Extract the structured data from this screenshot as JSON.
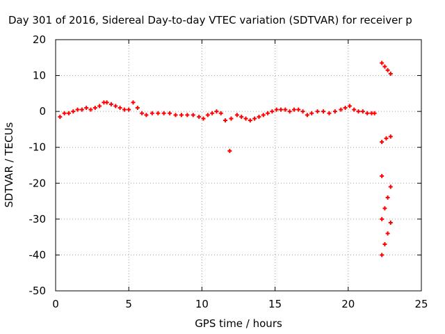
{
  "chart_data": {
    "type": "scatter",
    "title": "Day 301 of 2016, Sidereal Day-to-day VTEC variation (SDTVAR) for receiver p",
    "xlabel": "GPS time / hours",
    "ylabel": "SDTVAR / TECUs",
    "xlim": [
      0,
      25
    ],
    "ylim": [
      -50,
      20
    ],
    "xticks": [
      0,
      5,
      10,
      15,
      20,
      25
    ],
    "yticks": [
      20,
      10,
      0,
      -10,
      -20,
      -30,
      -40,
      -50
    ],
    "grid": true,
    "series_color": "#ff0000",
    "series": [
      {
        "x": [
          0.3,
          0.6,
          0.9,
          1.2,
          1.5,
          1.8,
          2.1,
          2.4,
          2.7,
          3.0,
          3.3,
          3.5,
          3.8,
          4.1,
          4.4,
          4.7,
          5.0,
          5.3,
          5.6,
          5.9,
          6.2,
          6.6,
          7.0,
          7.4,
          7.8,
          8.2,
          8.6,
          9.0,
          9.4,
          9.8,
          10.1,
          10.4,
          10.7,
          11.0,
          11.3,
          11.6,
          11.9,
          12.0,
          12.4,
          12.7,
          13.0,
          13.3,
          13.6,
          13.9,
          14.2,
          14.5,
          14.8,
          15.1,
          15.4,
          15.7,
          16.0,
          16.3,
          16.6,
          16.9,
          17.2,
          17.5,
          17.9,
          18.3,
          18.7,
          19.1,
          19.5,
          19.8,
          20.1,
          20.4,
          20.7,
          21.0,
          21.3,
          21.6,
          21.8,
          22.3,
          22.5,
          22.7,
          22.9,
          22.3,
          22.6,
          22.9,
          22.3,
          22.3,
          22.5,
          22.7,
          22.9,
          22.3,
          22.5,
          22.7,
          22.9
        ],
        "y": [
          -1.5,
          -0.5,
          -0.5,
          0.0,
          0.5,
          0.5,
          1.0,
          0.5,
          1.0,
          1.5,
          2.5,
          2.5,
          2.0,
          1.5,
          1.0,
          0.5,
          0.5,
          2.5,
          1.0,
          -0.5,
          -1.0,
          -0.5,
          -0.5,
          -0.5,
          -0.5,
          -1.0,
          -1.0,
          -1.0,
          -1.0,
          -1.5,
          -2.0,
          -1.0,
          -0.5,
          0.0,
          -0.5,
          -2.5,
          -11.0,
          -2.0,
          -1.0,
          -1.5,
          -2.0,
          -2.5,
          -2.0,
          -1.5,
          -1.0,
          -0.5,
          0.0,
          0.5,
          0.5,
          0.5,
          0.0,
          0.5,
          0.5,
          0.0,
          -1.0,
          -0.5,
          0.0,
          0.0,
          -0.5,
          0.0,
          0.5,
          1.0,
          1.5,
          0.5,
          0.0,
          0.0,
          -0.5,
          -0.5,
          -0.5,
          13.5,
          12.5,
          11.5,
          10.5,
          -8.5,
          -7.5,
          -7.0,
          -18.0,
          -30.0,
          -27.0,
          -24.0,
          -21.0,
          -40.0,
          -37.0,
          -34.0,
          -31.0
        ]
      }
    ]
  }
}
